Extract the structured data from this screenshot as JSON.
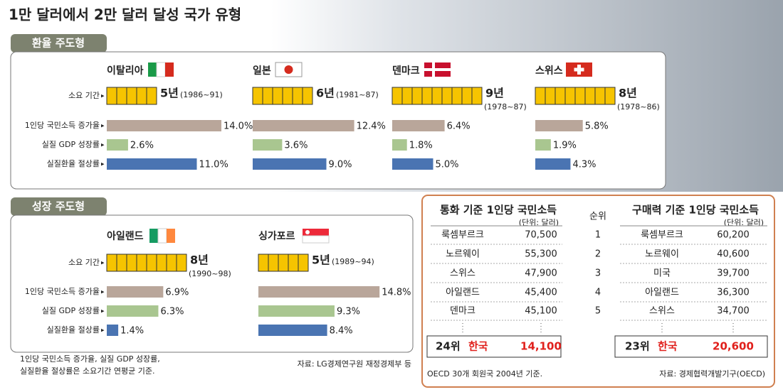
{
  "title": "1만 달러에서 2만 달러 달성 국가 유형",
  "row_labels": [
    "소요 기간",
    "1인당 국민소득 증가율",
    "실질 GDP 성장률",
    "실질환율 절상률"
  ],
  "groups": [
    {
      "name": "환율 주도형",
      "countries": [
        {
          "name": "이탈리아",
          "values": [
            5,
            14.0,
            2.6,
            11.0
          ],
          "value_labels": [
            "5년",
            "14.0%",
            "2.6%",
            "11.0%"
          ],
          "period": "(1986~91)"
        },
        {
          "name": "일본",
          "values": [
            6,
            12.4,
            3.6,
            9.0
          ],
          "value_labels": [
            "6년",
            "12.4%",
            "3.6%",
            "9.0%"
          ],
          "period": "(1981~87)"
        },
        {
          "name": "덴마크",
          "values": [
            9,
            6.4,
            1.8,
            5.0
          ],
          "value_labels": [
            "9년",
            "6.4%",
            "1.8%",
            "5.0%"
          ],
          "period": "(1978~87)"
        },
        {
          "name": "스위스",
          "values": [
            8,
            5.8,
            1.9,
            4.3
          ],
          "value_labels": [
            "8년",
            "5.8%",
            "1.9%",
            "4.3%"
          ],
          "period": "(1978~86)"
        }
      ]
    },
    {
      "name": "성장 주도형",
      "countries": [
        {
          "name": "아일랜드",
          "values": [
            8,
            6.9,
            6.3,
            1.4
          ],
          "value_labels": [
            "8년",
            "6.9%",
            "6.3%",
            "1.4%"
          ],
          "period": "(1990~98)"
        },
        {
          "name": "싱가포르",
          "values": [
            5,
            14.8,
            9.3,
            8.4
          ],
          "value_labels": [
            "5년",
            "14.8%",
            "9.3%",
            "8.4%"
          ],
          "period": "(1989~94)"
        }
      ]
    }
  ],
  "note": [
    "1인당 국민소득 증가율, 실질 GDP 성장률,",
    "실질환율 절상률은 소요기간 연평균 기준."
  ],
  "source": "자료: LG경제연구원 재정경제부 등",
  "ranking": {
    "rank_header": "순위",
    "ranks": [
      "1",
      "2",
      "3",
      "4",
      "5"
    ],
    "tables": [
      {
        "title": "통화 기준 1인당 국민소득",
        "unit": "(단위: 달러)",
        "rows": [
          [
            "룩셈부르크",
            "70,500"
          ],
          [
            "노르웨이",
            "55,300"
          ],
          [
            "스위스",
            "47,900"
          ],
          [
            "아일랜드",
            "45,400"
          ],
          [
            "덴마크",
            "45,100"
          ]
        ],
        "korea": [
          "24위",
          "한국",
          "14,100"
        ]
      },
      {
        "title": "구매력 기준 1인당 국민소득",
        "unit": "(단위: 달러)",
        "rows": [
          [
            "룩셈부르크",
            "60,200"
          ],
          [
            "노르웨이",
            "40,600"
          ],
          [
            "미국",
            "39,700"
          ],
          [
            "아일랜드",
            "36,300"
          ],
          [
            "스위스",
            "34,700"
          ]
        ],
        "korea": [
          "23위",
          "한국",
          "20,600"
        ]
      }
    ],
    "note": "OECD 30개 회원국 2004년 기준.",
    "source": "자료: 경제협력개발기구(OECD)"
  }
}
